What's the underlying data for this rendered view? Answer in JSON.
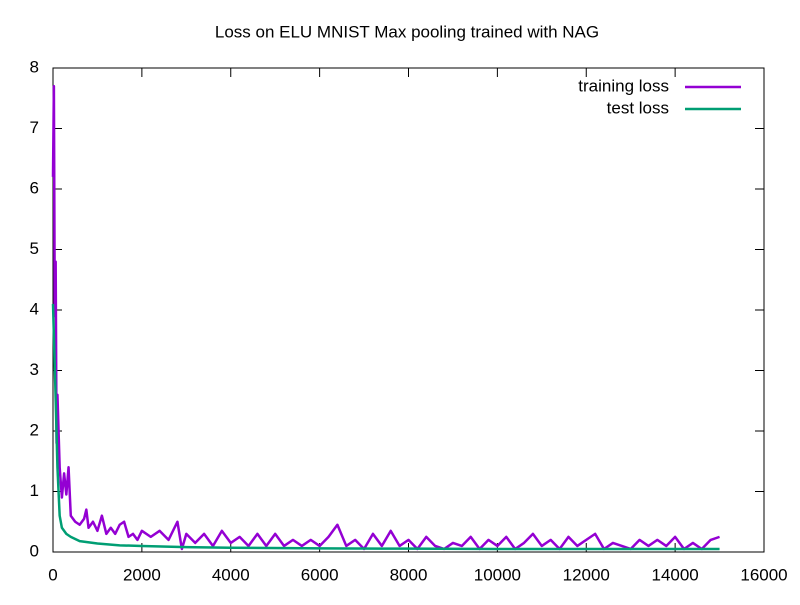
{
  "chart_data": {
    "type": "line",
    "title": "Loss on ELU MNIST Max pooling trained with NAG",
    "xlim": [
      0,
      16000
    ],
    "xticks": [
      0,
      2000,
      4000,
      6000,
      8000,
      10000,
      12000,
      14000,
      16000
    ],
    "ylim": [
      0,
      8
    ],
    "yticks": [
      0,
      1,
      2,
      3,
      4,
      5,
      6,
      7,
      8
    ],
    "legend": "top-right",
    "series": [
      {
        "name": "training loss",
        "color": "#9400d3",
        "x": [
          0,
          20,
          40,
          60,
          80,
          100,
          150,
          200,
          250,
          300,
          350,
          400,
          500,
          600,
          700,
          750,
          800,
          900,
          1000,
          1100,
          1200,
          1300,
          1400,
          1500,
          1600,
          1700,
          1800,
          1900,
          2000,
          2200,
          2400,
          2600,
          2800,
          2900,
          3000,
          3200,
          3400,
          3600,
          3800,
          4000,
          4200,
          4400,
          4600,
          4800,
          5000,
          5200,
          5400,
          5600,
          5800,
          6000,
          6200,
          6400,
          6600,
          6800,
          7000,
          7200,
          7400,
          7600,
          7800,
          8000,
          8200,
          8400,
          8600,
          8800,
          9000,
          9200,
          9400,
          9600,
          9800,
          10000,
          10200,
          10400,
          10600,
          10800,
          11000,
          11200,
          11400,
          11600,
          11800,
          12000,
          12200,
          12400,
          12600,
          12800,
          13000,
          13200,
          13400,
          13600,
          13800,
          14000,
          14200,
          14400,
          14600,
          14800,
          15000
        ],
        "values": [
          6.2,
          7.7,
          3.9,
          4.8,
          1.8,
          2.6,
          1.4,
          0.9,
          1.3,
          0.95,
          1.4,
          0.6,
          0.5,
          0.45,
          0.55,
          0.7,
          0.4,
          0.5,
          0.35,
          0.6,
          0.3,
          0.4,
          0.3,
          0.45,
          0.5,
          0.25,
          0.3,
          0.2,
          0.35,
          0.25,
          0.35,
          0.2,
          0.5,
          0.05,
          0.3,
          0.15,
          0.3,
          0.1,
          0.35,
          0.15,
          0.25,
          0.1,
          0.3,
          0.1,
          0.3,
          0.1,
          0.2,
          0.1,
          0.2,
          0.1,
          0.25,
          0.45,
          0.1,
          0.2,
          0.05,
          0.3,
          0.1,
          0.35,
          0.1,
          0.2,
          0.05,
          0.25,
          0.1,
          0.05,
          0.15,
          0.1,
          0.25,
          0.05,
          0.2,
          0.1,
          0.25,
          0.05,
          0.15,
          0.3,
          0.1,
          0.2,
          0.05,
          0.25,
          0.1,
          0.2,
          0.3,
          0.05,
          0.15,
          0.1,
          0.05,
          0.2,
          0.1,
          0.2,
          0.1,
          0.25,
          0.05,
          0.15,
          0.05,
          0.2,
          0.25
        ]
      },
      {
        "name": "test loss",
        "color": "#009e73",
        "x": [
          0,
          50,
          100,
          150,
          200,
          300,
          400,
          600,
          1000,
          1500,
          2000,
          3000,
          4000,
          6000,
          8000,
          10000,
          12000,
          15000
        ],
        "values": [
          4.1,
          2.8,
          1.4,
          0.6,
          0.4,
          0.3,
          0.25,
          0.18,
          0.14,
          0.11,
          0.1,
          0.08,
          0.07,
          0.06,
          0.055,
          0.05,
          0.05,
          0.05
        ]
      }
    ]
  }
}
